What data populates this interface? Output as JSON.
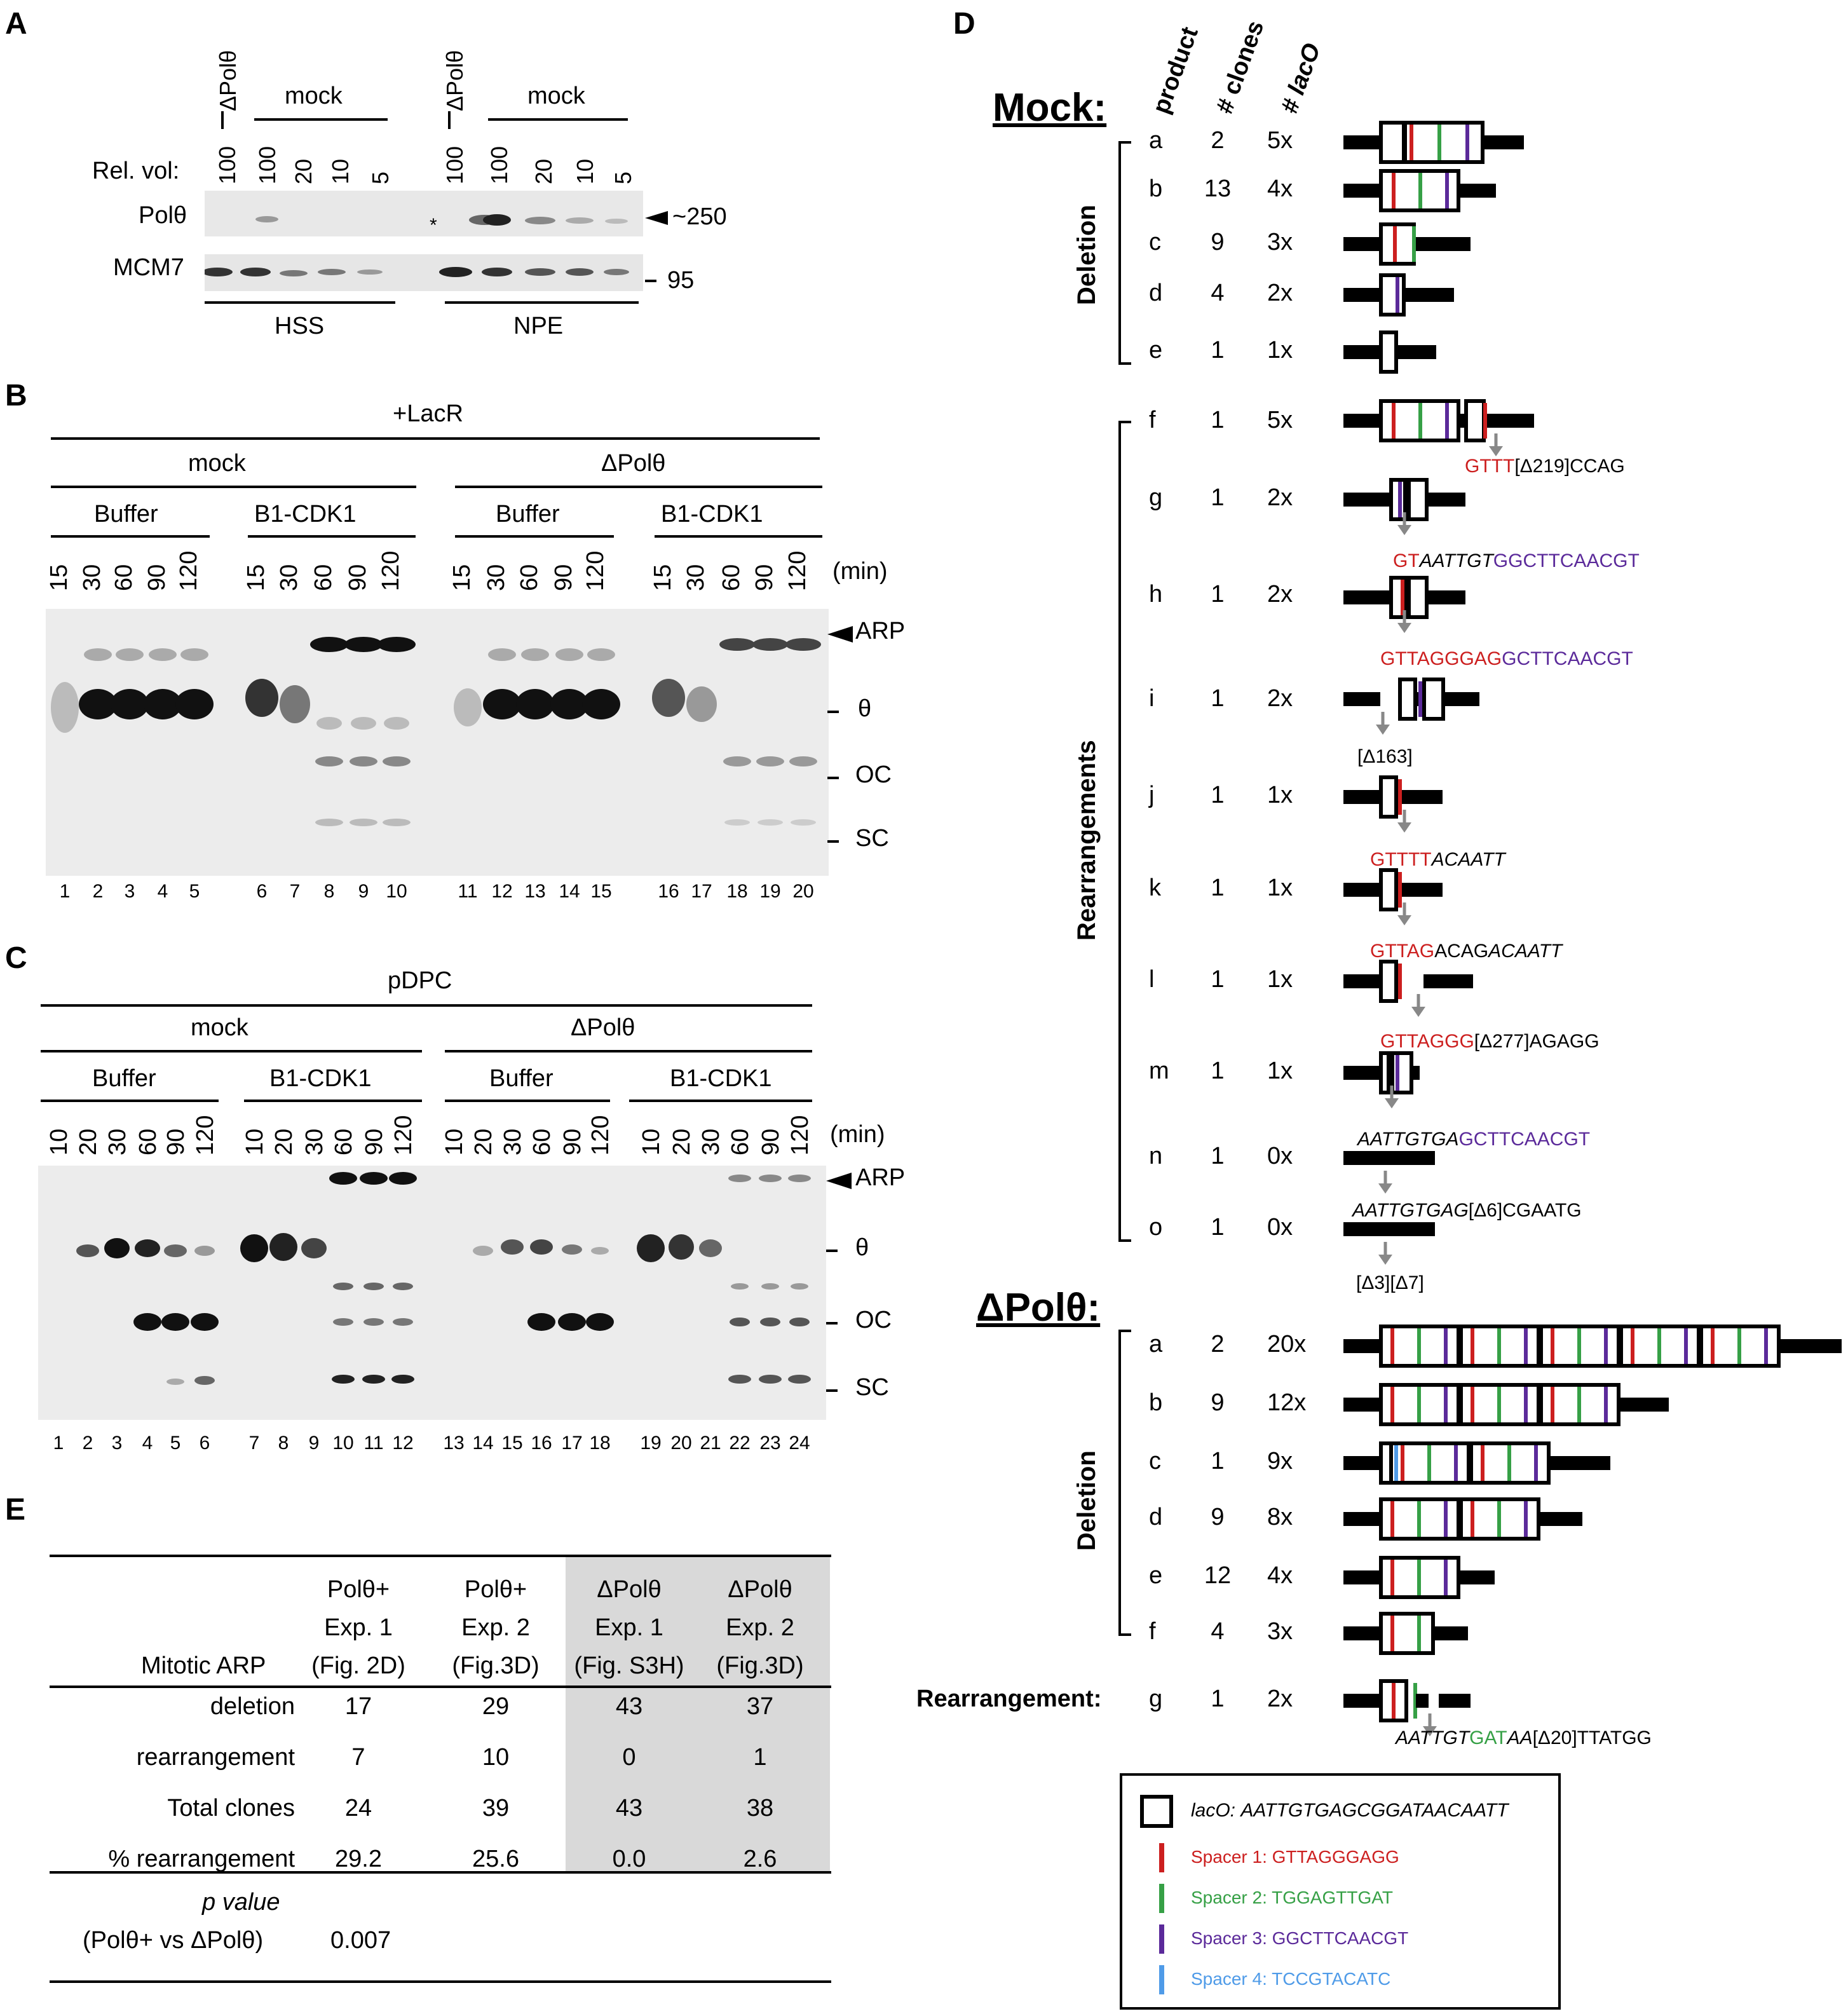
{
  "panelA": {
    "label": "A",
    "lane_headers": [
      "ΔPolθ",
      "mock",
      "ΔPolθ",
      "mock"
    ],
    "rel_vol_label": "Rel. vol:",
    "rel_vols": [
      "100",
      "100",
      "20",
      "10",
      "5",
      "100",
      "100",
      "20",
      "10",
      "5"
    ],
    "rows": [
      "Polθ",
      "MCM7"
    ],
    "markers": [
      "~250",
      "95"
    ],
    "asterisk": "*",
    "groups": [
      "HSS",
      "NPE"
    ]
  },
  "panelB": {
    "label": "B",
    "condition": "+LacR",
    "groups": [
      "mock",
      "ΔPolθ"
    ],
    "subgroups": [
      "Buffer",
      "B1-CDK1",
      "Buffer",
      "B1-CDK1"
    ],
    "times": [
      "15",
      "30",
      "60",
      "90",
      "120"
    ],
    "unit": "(min)",
    "bands": [
      "ARP",
      "θ",
      "OC",
      "SC"
    ],
    "lanes": [
      "1",
      "2",
      "3",
      "4",
      "5",
      "6",
      "7",
      "8",
      "9",
      "10",
      "11",
      "12",
      "13",
      "14",
      "15",
      "16",
      "17",
      "18",
      "19",
      "20"
    ]
  },
  "panelC": {
    "label": "C",
    "condition": "pDPC",
    "groups": [
      "mock",
      "ΔPolθ"
    ],
    "subgroups": [
      "Buffer",
      "B1-CDK1",
      "Buffer",
      "B1-CDK1"
    ],
    "times": [
      "10",
      "20",
      "30",
      "60",
      "90",
      "120"
    ],
    "unit": "(min)",
    "bands": [
      "ARP",
      "θ",
      "OC",
      "SC"
    ],
    "lanes": [
      "1",
      "2",
      "3",
      "4",
      "5",
      "6",
      "7",
      "8",
      "9",
      "10",
      "11",
      "12",
      "13",
      "14",
      "15",
      "16",
      "17",
      "18",
      "19",
      "20",
      "21",
      "22",
      "23",
      "24"
    ]
  },
  "panelD": {
    "label": "D",
    "col_headers": [
      "product",
      "# clones",
      "# lacO"
    ],
    "mock_title": "Mock:",
    "mock_groups": [
      "Deletion",
      "Rearrangements"
    ],
    "mock_rows": [
      {
        "p": "a",
        "n": "2",
        "l": "5x"
      },
      {
        "p": "b",
        "n": "13",
        "l": "4x"
      },
      {
        "p": "c",
        "n": "9",
        "l": "3x"
      },
      {
        "p": "d",
        "n": "4",
        "l": "2x"
      },
      {
        "p": "e",
        "n": "1",
        "l": "1x"
      },
      {
        "p": "f",
        "n": "1",
        "l": "5x"
      },
      {
        "p": "g",
        "n": "1",
        "l": "2x"
      },
      {
        "p": "h",
        "n": "1",
        "l": "2x"
      },
      {
        "p": "i",
        "n": "1",
        "l": "2x"
      },
      {
        "p": "j",
        "n": "1",
        "l": "1x"
      },
      {
        "p": "k",
        "n": "1",
        "l": "1x"
      },
      {
        "p": "l",
        "n": "1",
        "l": "1x"
      },
      {
        "p": "m",
        "n": "1",
        "l": "1x"
      },
      {
        "p": "n",
        "n": "1",
        "l": "0x"
      },
      {
        "p": "o",
        "n": "1",
        "l": "0x"
      }
    ],
    "dpol_title": "ΔPolθ:",
    "dpol_group": "Deletion",
    "rearr_label": "Rearrangement:",
    "dpol_rows": [
      {
        "p": "a",
        "n": "2",
        "l": "20x"
      },
      {
        "p": "b",
        "n": "9",
        "l": "12x"
      },
      {
        "p": "c",
        "n": "1",
        "l": "9x"
      },
      {
        "p": "d",
        "n": "9",
        "l": "8x"
      },
      {
        "p": "e",
        "n": "12",
        "l": "4x"
      },
      {
        "p": "f",
        "n": "4",
        "l": "3x"
      },
      {
        "p": "g",
        "n": "1",
        "l": "2x"
      }
    ],
    "junctions": {
      "f": [
        "GTTT",
        "[Δ219]CCAG"
      ],
      "g": [
        "GT",
        "AATTGT",
        "GGCTTCAACGT"
      ],
      "h": [
        "GTTAGGGAG",
        "GCTTCAACGT"
      ],
      "i": [
        "[Δ163]"
      ],
      "j": [
        "GTTTT",
        "ACAATT"
      ],
      "k": [
        "GTTAG",
        "ACAG",
        "ACAATT"
      ],
      "l": [
        "GTTAGGG",
        "[Δ277]AGAGG"
      ],
      "m": [
        "AATTGTGA",
        "GCTTCAACGT"
      ],
      "n": [
        "AATTGTGAG",
        "[Δ6]CGAATG"
      ],
      "o": [
        "[Δ3][Δ7]"
      ],
      "dg": [
        "AATTGT",
        "GAT",
        "AA",
        "[Δ20]TTATGG"
      ]
    },
    "legend": {
      "laco": "lacO:",
      "laco_seq": "AATTGTGAGCGGATAACAATT",
      "spacers": [
        "Spacer 1: GTTAGGGAGG",
        "Spacer 2: TGGAGTTGAT",
        "Spacer 3: GGCTTCAACGT",
        "Spacer 4: TCCGTACATC"
      ]
    },
    "colors": {
      "spacer1": "#cc1f1f",
      "spacer2": "#36a046",
      "spacer3": "#5b2a9a",
      "spacer4": "#4f9be8"
    }
  },
  "panelE": {
    "label": "E",
    "columns": [
      [
        "Mitotic ARP"
      ],
      [
        "Polθ+",
        "Exp. 1",
        "(Fig. 2D)"
      ],
      [
        "Polθ+",
        "Exp. 2",
        "(Fig.3D)"
      ],
      [
        "ΔPolθ",
        "Exp. 1",
        "(Fig. S3H)"
      ],
      [
        "ΔPolθ",
        "Exp. 2",
        "(Fig.3D)"
      ]
    ],
    "rows": [
      [
        "deletion",
        "17",
        "29",
        "43",
        "37"
      ],
      [
        "rearrangement",
        "7",
        "10",
        "0",
        "1"
      ],
      [
        "Total clones",
        "24",
        "39",
        "43",
        "38"
      ],
      [
        "% rearrangement",
        "29.2",
        "25.6",
        "0.0",
        "2.6"
      ]
    ],
    "pvalue_label": [
      "p value",
      "(Polθ+ vs ΔPolθ)"
    ],
    "pvalue": "0.007"
  }
}
